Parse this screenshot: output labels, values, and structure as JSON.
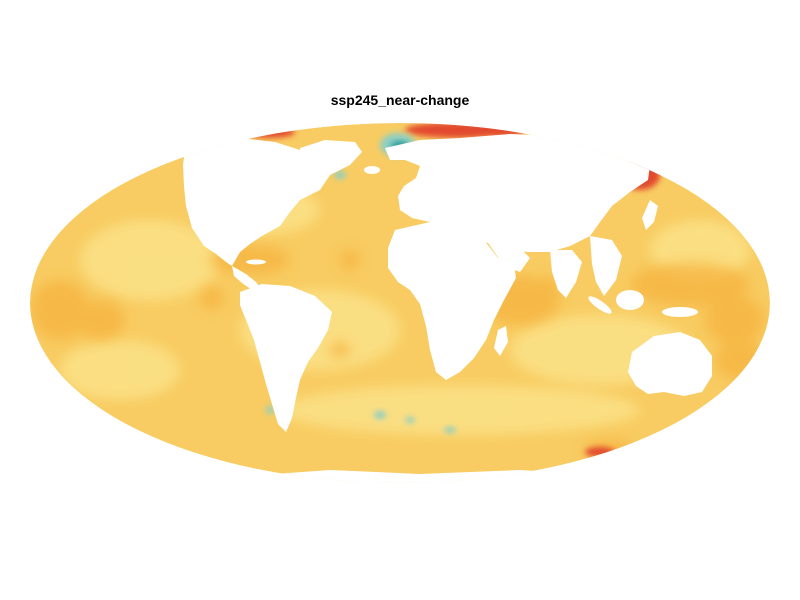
{
  "figure": {
    "title": "ssp245_near-change"
  },
  "map": {
    "projection": "Mollweide",
    "ocean_base_color": "#f8cc62",
    "land_color": "#ffffff",
    "palette": {
      "pale": "#fbe38a",
      "mid": "#f6b33f",
      "warm": "#f08f2c",
      "hot": "#e2492d",
      "hottest": "#c92a5c",
      "cool": "#8dcfc2",
      "cold": "#2e9a9a"
    }
  }
}
